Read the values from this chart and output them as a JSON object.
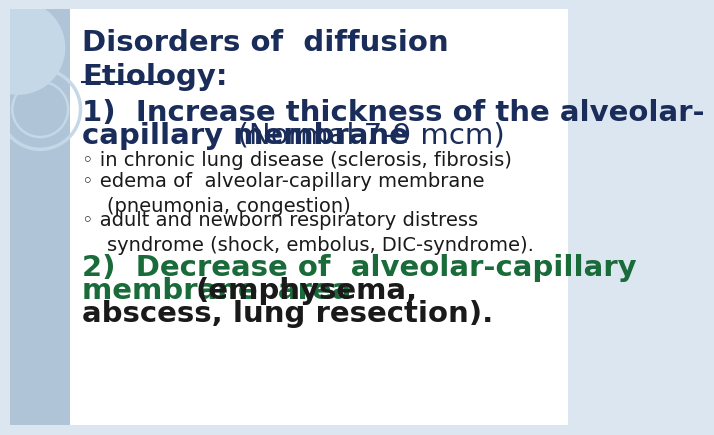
{
  "bg_color": "#dce6f0",
  "left_bar_color": "#b0c4d8",
  "white_area_color": "#ffffff",
  "title": "Disorders of  diffusion",
  "title_color": "#1a2d5a",
  "title_fontsize": 21,
  "etiology_label": "Etiology:",
  "etiology_color": "#1a2d5a",
  "etiology_fontsize": 21,
  "point1_line1": "1)  Increase thickness of the alveolar-",
  "point1_line2_bold": "capillary membrane",
  "point1_line2_normal": "  (Normal 7-9 mcm)",
  "point1_color": "#1a2d5a",
  "point1_fontsize": 21,
  "bullets": [
    "◦ in chronic lung disease (sclerosis, fibrosis)",
    "◦ edema of  alveolar-capillary membrane\n    (pneumonia, congestion)",
    "◦ adult and newborn respiratory distress\n    syndrome (shock, embolus, DIC-syndrome)."
  ],
  "bullet_color": "#1a1a1a",
  "bullet_fontsize": 14,
  "point2_line1_bold": "2)  Decrease of  alveolar-capillary",
  "point2_line2_bold": "membrane  area ",
  "point2_line2_normal": "(emphysema,",
  "point2_line3": "abscess, lung resection).",
  "point2_color": "#1a6b3a",
  "point2_normal_color": "#1a1a1a",
  "point2_fontsize": 21,
  "circle_color": "#c5d8e8",
  "circle_fill_color": "#dce8f0"
}
